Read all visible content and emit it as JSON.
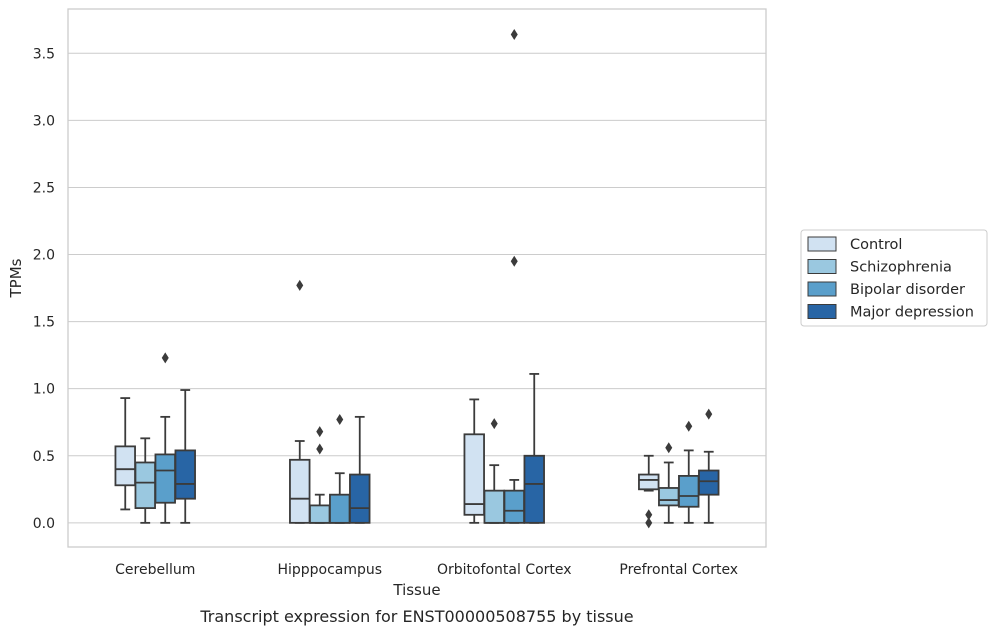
{
  "caption": "Transcript expression for ENST00000508755 by tissue",
  "chart_data": {
    "type": "box",
    "xlabel": "Tissue",
    "ylabel": "TPMs",
    "ylim": [
      -0.18,
      3.83
    ],
    "yticks": [
      0.0,
      0.5,
      1.0,
      1.5,
      2.0,
      2.5,
      3.0,
      3.5
    ],
    "ytick_labels": [
      "0.0",
      "0.5",
      "1.0",
      "1.5",
      "2.0",
      "2.5",
      "3.0",
      "3.5"
    ],
    "grid": "horizontal",
    "legend_position": "right",
    "categories": [
      "Cerebellum",
      "Hipppocampus",
      "Orbitofontal Cortex",
      "Prefrontal Cortex"
    ],
    "series": [
      {
        "name": "Control",
        "color": "#d1e2f2",
        "boxes": [
          {
            "whislo": 0.1,
            "q1": 0.28,
            "med": 0.4,
            "q3": 0.57,
            "whishi": 0.93,
            "fliers": []
          },
          {
            "whislo": 0.0,
            "q1": 0.0,
            "med": 0.18,
            "q3": 0.47,
            "whishi": 0.61,
            "fliers": [
              1.77
            ]
          },
          {
            "whislo": 0.0,
            "q1": 0.06,
            "med": 0.14,
            "q3": 0.66,
            "whishi": 0.92,
            "fliers": []
          },
          {
            "whislo": 0.24,
            "q1": 0.25,
            "med": 0.32,
            "q3": 0.36,
            "whishi": 0.5,
            "fliers": [
              0.06,
              0.0
            ]
          }
        ]
      },
      {
        "name": "Schizophrenia",
        "color": "#9ac8e0",
        "boxes": [
          {
            "whislo": 0.0,
            "q1": 0.11,
            "med": 0.3,
            "q3": 0.45,
            "whishi": 0.63,
            "fliers": []
          },
          {
            "whislo": 0.0,
            "q1": 0.0,
            "med": 0.0,
            "q3": 0.13,
            "whishi": 0.21,
            "fliers": [
              0.68,
              0.55
            ]
          },
          {
            "whislo": 0.0,
            "q1": 0.0,
            "med": 0.0,
            "q3": 0.24,
            "whishi": 0.43,
            "fliers": [
              0.74
            ]
          },
          {
            "whislo": 0.0,
            "q1": 0.13,
            "med": 0.17,
            "q3": 0.26,
            "whishi": 0.45,
            "fliers": [
              0.56
            ]
          }
        ]
      },
      {
        "name": "Bipolar disorder",
        "color": "#5a9fcb",
        "boxes": [
          {
            "whislo": 0.0,
            "q1": 0.15,
            "med": 0.39,
            "q3": 0.51,
            "whishi": 0.79,
            "fliers": [
              1.23
            ]
          },
          {
            "whislo": 0.0,
            "q1": 0.0,
            "med": 0.0,
            "q3": 0.21,
            "whishi": 0.37,
            "fliers": [
              0.77
            ]
          },
          {
            "whislo": 0.0,
            "q1": 0.0,
            "med": 0.09,
            "q3": 0.24,
            "whishi": 0.32,
            "fliers": [
              3.64,
              1.95
            ]
          },
          {
            "whislo": 0.0,
            "q1": 0.12,
            "med": 0.2,
            "q3": 0.35,
            "whishi": 0.54,
            "fliers": [
              0.72
            ]
          }
        ]
      },
      {
        "name": "Major depression",
        "color": "#2865a5",
        "boxes": [
          {
            "whislo": 0.0,
            "q1": 0.18,
            "med": 0.29,
            "q3": 0.54,
            "whishi": 0.99,
            "fliers": []
          },
          {
            "whislo": 0.0,
            "q1": 0.0,
            "med": 0.11,
            "q3": 0.36,
            "whishi": 0.79,
            "fliers": []
          },
          {
            "whislo": 0.0,
            "q1": 0.0,
            "med": 0.29,
            "q3": 0.5,
            "whishi": 1.11,
            "fliers": []
          },
          {
            "whislo": 0.0,
            "q1": 0.21,
            "med": 0.31,
            "q3": 0.39,
            "whishi": 0.53,
            "fliers": [
              0.81
            ]
          }
        ]
      }
    ]
  }
}
